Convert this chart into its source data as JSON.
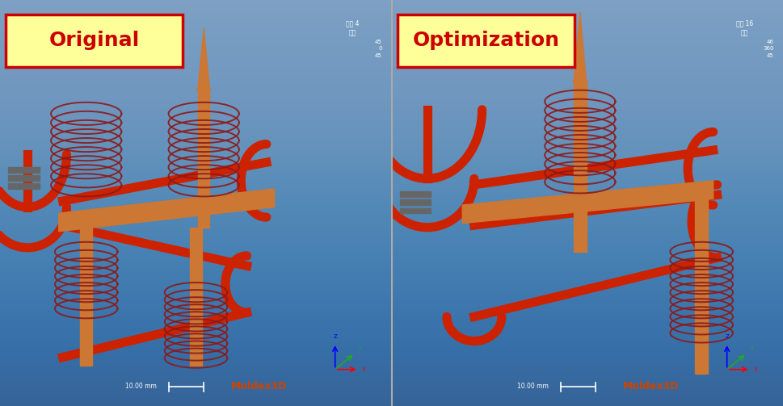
{
  "figsize": [
    9.7,
    5.03
  ],
  "dpi": 100,
  "bg_color": "#4a7aab",
  "left_label": "Original",
  "right_label": "Optimization",
  "label_bg_color": "#ffff99",
  "label_text_color": "#cc0000",
  "label_fontsize": 18,
  "label_fontweight": "bold",
  "divider_color": "#888888",
  "bottom_text_left": "10.00 mm",
  "bottom_text_right": "10.00 mm",
  "moldex_text": "Moldex3D",
  "moldex_color": "#cc4400",
  "top_right_text_left": "组别 4\n模型",
  "top_right_text_right": "组别 16\n模型",
  "axis_nums_left": "45\n0\n45",
  "axis_nums_right": "46\n360\n45",
  "orange": "#cc7733",
  "dark_red": "#8b1a1a",
  "red": "#cc2200",
  "panel_bg": "#4a7faf"
}
